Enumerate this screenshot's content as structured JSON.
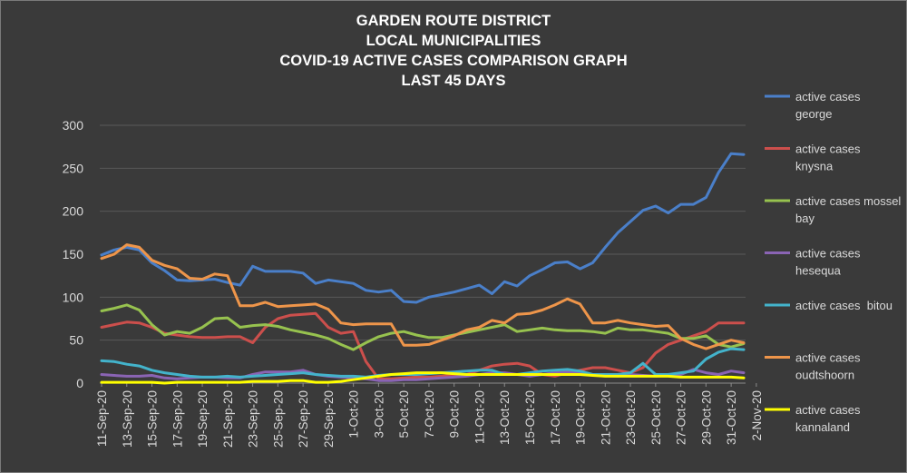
{
  "chart_data": {
    "type": "line",
    "title": [
      "GARDEN ROUTE DISTRICT",
      "LOCAL MUNICIPALITIES",
      "COVID-19 ACTIVE CASES COMPARISON GRAPH",
      "LAST 45 DAYS"
    ],
    "xlabel": "",
    "ylabel": "",
    "ylim": [
      0,
      300
    ],
    "y_ticks": [
      0,
      50,
      100,
      150,
      200,
      250,
      300
    ],
    "grid": true,
    "legend_position": "right",
    "x_tick_labels": [
      "11-Sep-20",
      "13-Sep-20",
      "15-Sep-20",
      "17-Sep-20",
      "19-Sep-20",
      "21-Sep-20",
      "23-Sep-20",
      "25-Sep-20",
      "27-Sep-20",
      "29-Sep-20",
      "1-Oct-20",
      "3-Oct-20",
      "5-Oct-20",
      "7-Oct-20",
      "9-Oct-20",
      "11-Oct-20",
      "13-Oct-20",
      "15-Oct-20",
      "17-Oct-20",
      "19-Oct-20",
      "21-Oct-20",
      "23-Oct-20",
      "25-Oct-20",
      "27-Oct-20",
      "29-Oct-20",
      "31-Oct-20",
      "2-Nov-20"
    ],
    "series": [
      {
        "name": "active cases george",
        "color": "#4a7fc9",
        "values": [
          149,
          155,
          158,
          155,
          140,
          131,
          120,
          119,
          120,
          121,
          117,
          114,
          136,
          130,
          130,
          130,
          128,
          116,
          120,
          118,
          116,
          108,
          106,
          108,
          95,
          94,
          100,
          103,
          106,
          110,
          114,
          104,
          118,
          113,
          125,
          132,
          140,
          141,
          133,
          140,
          158,
          175,
          188,
          201,
          206,
          198,
          208,
          208,
          216,
          245,
          267,
          266
        ]
      },
      {
        "name": "active cases knysna",
        "color": "#cc4f4c",
        "values": [
          65,
          68,
          71,
          70,
          65,
          58,
          56,
          54,
          53,
          53,
          54,
          54,
          47,
          65,
          75,
          79,
          80,
          81,
          65,
          58,
          60,
          25,
          5,
          5,
          6,
          7,
          7,
          8,
          9,
          10,
          15,
          20,
          22,
          23,
          20,
          10,
          8,
          12,
          15,
          18,
          18,
          15,
          12,
          18,
          35,
          45,
          50,
          55,
          60,
          70,
          70,
          70
        ]
      },
      {
        "name": "active cases mossel bay",
        "color": "#97c24f",
        "values": [
          84,
          87,
          91,
          85,
          68,
          56,
          60,
          58,
          65,
          75,
          76,
          65,
          67,
          68,
          66,
          62,
          59,
          56,
          52,
          45,
          39,
          47,
          54,
          58,
          60,
          56,
          53,
          53,
          56,
          59,
          62,
          65,
          68,
          60,
          62,
          64,
          62,
          61,
          61,
          60,
          58,
          64,
          62,
          62,
          60,
          58,
          52,
          52,
          55,
          45,
          42,
          46
        ]
      },
      {
        "name": "active cases hesequa",
        "color": "#8a64b4",
        "values": [
          10,
          9,
          8,
          8,
          9,
          6,
          5,
          6,
          7,
          7,
          6,
          6,
          10,
          13,
          13,
          13,
          15,
          10,
          8,
          7,
          6,
          5,
          3,
          3,
          4,
          4,
          5,
          6,
          7,
          8,
          10,
          12,
          12,
          10,
          8,
          10,
          12,
          13,
          12,
          10,
          9,
          8,
          10,
          9,
          8,
          9,
          10,
          16,
          12,
          10,
          14,
          12
        ]
      },
      {
        "name": "active cases  bitou",
        "color": "#43b3cb",
        "values": [
          26,
          25,
          22,
          20,
          15,
          12,
          10,
          8,
          7,
          7,
          8,
          7,
          8,
          9,
          10,
          11,
          12,
          10,
          9,
          8,
          8,
          7,
          9,
          10,
          10,
          10,
          11,
          12,
          13,
          14,
          15,
          15,
          10,
          10,
          12,
          14,
          15,
          16,
          14,
          10,
          10,
          10,
          12,
          23,
          10,
          10,
          12,
          14,
          28,
          36,
          40,
          39
        ]
      },
      {
        "name": "active cases oudtshoorn",
        "color": "#ee954a",
        "values": [
          145,
          150,
          161,
          158,
          143,
          137,
          133,
          122,
          121,
          127,
          125,
          90,
          90,
          94,
          89,
          90,
          91,
          92,
          86,
          70,
          68,
          69,
          69,
          69,
          44,
          44,
          45,
          50,
          55,
          62,
          65,
          73,
          70,
          80,
          81,
          85,
          91,
          98,
          92,
          70,
          70,
          73,
          70,
          68,
          66,
          67,
          52,
          45,
          40,
          45,
          50,
          47
        ]
      },
      {
        "name": "active cases kannaland",
        "color": "#ffff00",
        "values": [
          1,
          1,
          1,
          1,
          1,
          0,
          1,
          1,
          1,
          1,
          1,
          1,
          2,
          2,
          2,
          3,
          3,
          1,
          1,
          2,
          4,
          6,
          8,
          10,
          11,
          12,
          12,
          12,
          11,
          10,
          10,
          10,
          10,
          10,
          10,
          10,
          10,
          10,
          10,
          9,
          8,
          8,
          8,
          8,
          8,
          8,
          7,
          7,
          7,
          7,
          7,
          6
        ]
      }
    ]
  }
}
